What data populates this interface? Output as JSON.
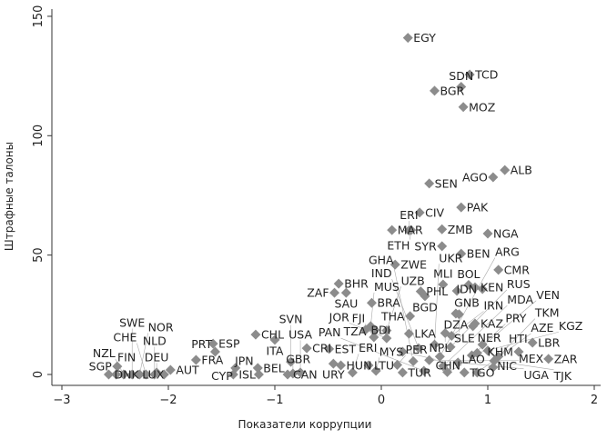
{
  "chart_data": {
    "type": "scatter",
    "title": "",
    "xlabel": "Показатели коррупции",
    "ylabel": "Штрафные талоны",
    "xlim": [
      -3,
      2.05
    ],
    "ylim": [
      0,
      150
    ],
    "xticks": [
      "−3",
      "−2",
      "−1",
      "0",
      "1",
      "2"
    ],
    "xtick_values": [
      -3,
      -2,
      -1,
      0,
      1,
      2
    ],
    "yticks": [
      "0",
      "50",
      "100",
      "150"
    ],
    "ytick_values": [
      0,
      50,
      100,
      150
    ],
    "grid": false,
    "marker": "diamond",
    "marker_color": "#8c8c8c",
    "points": [
      {
        "label": "EGY",
        "x": 0.25,
        "y": 141
      },
      {
        "label": "TCD",
        "x": 0.83,
        "y": 125.6
      },
      {
        "label": "SDN",
        "x": 0.75,
        "y": 120.5
      },
      {
        "label": "BGR",
        "x": 0.5,
        "y": 118.8
      },
      {
        "label": "MOZ",
        "x": 0.77,
        "y": 112
      },
      {
        "label": "ALB",
        "x": 1.16,
        "y": 85.6
      },
      {
        "label": "AGO",
        "x": 1.05,
        "y": 82.6
      },
      {
        "label": "SEN",
        "x": 0.45,
        "y": 80
      },
      {
        "label": "PAK",
        "x": 0.75,
        "y": 70
      },
      {
        "label": "CIV",
        "x": 0.36,
        "y": 67.8
      },
      {
        "label": "MAR",
        "x": 0.1,
        "y": 60.5
      },
      {
        "label": "ERI",
        "x": 0.26,
        "y": 60.3
      },
      {
        "label": "ETH",
        "x": 0.28,
        "y": 60.5
      },
      {
        "label": "ZMB",
        "x": 0.57,
        "y": 60.8
      },
      {
        "label": "NGA",
        "x": 1.0,
        "y": 59
      },
      {
        "label": "SYR",
        "x": 0.57,
        "y": 53.7
      },
      {
        "label": "BEN",
        "x": 0.75,
        "y": 50.6
      },
      {
        "label": "ZWE",
        "x": 0.13,
        "y": 46
      },
      {
        "label": "CMR",
        "x": 1.1,
        "y": 43.8
      },
      {
        "label": "BHR",
        "x": -0.4,
        "y": 38
      },
      {
        "label": "ZAF",
        "x": -0.44,
        "y": 34.2
      },
      {
        "label": "SAU",
        "x": -0.33,
        "y": 34.2
      },
      {
        "label": "BRA",
        "x": -0.09,
        "y": 30
      },
      {
        "label": "PHL",
        "x": 0.37,
        "y": 34.8
      },
      {
        "label": "BGD",
        "x": 0.41,
        "y": 32.8
      },
      {
        "label": "MLI",
        "x": 0.58,
        "y": 37.7
      },
      {
        "label": "GNB",
        "x": 0.71,
        "y": 35
      },
      {
        "label": "BOL",
        "x": 0.82,
        "y": 37.5
      },
      {
        "label": "KEN",
        "x": 0.88,
        "y": 36.5
      },
      {
        "label": "IDN",
        "x": 0.95,
        "y": 35.8
      },
      {
        "label": "THA",
        "x": 0.27,
        "y": 24.4
      },
      {
        "label": "DZA",
        "x": 0.7,
        "y": 25.5
      },
      {
        "label": "SLE",
        "x": 0.73,
        "y": 25.2
      },
      {
        "label": "KAZ",
        "x": 0.88,
        "y": 21.3
      },
      {
        "label": "NER",
        "x": 0.86,
        "y": 20.2
      },
      {
        "label": "LKA",
        "x": 0.26,
        "y": 17.1
      },
      {
        "label": "NPL",
        "x": 0.6,
        "y": 17.3
      },
      {
        "label": "IRN",
        "x": 0.66,
        "y": 16.2
      },
      {
        "label": "BDI",
        "x": -0.15,
        "y": 18.6
      },
      {
        "label": "TZA",
        "x": -0.06,
        "y": 18.6
      },
      {
        "label": "UZB",
        "x": 0.05,
        "y": 18.4
      },
      {
        "label": "MUS",
        "x": -0.1,
        "y": 20.2
      },
      {
        "label": "FJI",
        "x": -0.07,
        "y": 15.6
      },
      {
        "label": "JOR",
        "x": 0.05,
        "y": 15.2
      },
      {
        "label": "CHL",
        "x": -1.18,
        "y": 16.7
      },
      {
        "label": "ITA",
        "x": -1.0,
        "y": 14.5
      },
      {
        "label": "ESP",
        "x": -1.58,
        "y": 12.9
      },
      {
        "label": "PRT",
        "x": -1.56,
        "y": 9.5
      },
      {
        "label": "FRA",
        "x": -1.74,
        "y": 6.1
      },
      {
        "label": "AUT",
        "x": -1.98,
        "y": 1.9
      },
      {
        "label": "SGP",
        "x": -2.48,
        "y": 3.4
      },
      {
        "label": "DEU",
        "x": -2.11,
        "y": 0.8
      },
      {
        "label": "DNK",
        "x": -2.56,
        "y": 0
      },
      {
        "label": "FIN",
        "x": -2.49,
        "y": 0
      },
      {
        "label": "NZL",
        "x": -2.42,
        "y": 0
      },
      {
        "label": "SWE",
        "x": -2.34,
        "y": 0
      },
      {
        "label": "NOR",
        "x": -2.27,
        "y": 0
      },
      {
        "label": "CHE",
        "x": -2.21,
        "y": 0
      },
      {
        "label": "NLD",
        "x": -2.13,
        "y": 0
      },
      {
        "label": "LUX",
        "x": -2.04,
        "y": 0
      },
      {
        "label": "CYP",
        "x": -1.37,
        "y": 2.7
      },
      {
        "label": "BEL",
        "x": -1.16,
        "y": 2.7
      },
      {
        "label": "ISL",
        "x": -1.39,
        "y": 0
      },
      {
        "label": "JPN",
        "x": -1.15,
        "y": 0
      },
      {
        "label": "CAN",
        "x": -0.88,
        "y": 0
      },
      {
        "label": "GBR",
        "x": -0.83,
        "y": 0.4
      },
      {
        "label": "USA",
        "x": -0.76,
        "y": 0.8
      },
      {
        "label": "SVN",
        "x": -0.85,
        "y": 5.3
      },
      {
        "label": "CRI",
        "x": -0.7,
        "y": 11
      },
      {
        "label": "EST",
        "x": -0.49,
        "y": 10.7
      },
      {
        "label": "HUN",
        "x": -0.38,
        "y": 3.8
      },
      {
        "label": "URY",
        "x": -0.45,
        "y": 4.5
      },
      {
        "label": "LTU",
        "x": -0.12,
        "y": 3.8
      },
      {
        "label": "ERI",
        "x": -0.27,
        "y": 0.8
      },
      {
        "label": "MYS",
        "x": -0.05,
        "y": 1.5
      },
      {
        "label": "CHN",
        "x": 0.2,
        "y": 9.5
      },
      {
        "label": "IND",
        "x": 0.35,
        "y": 11
      },
      {
        "label": "UKR",
        "x": 0.5,
        "y": 12.5
      },
      {
        "label": "RUS",
        "x": 0.65,
        "y": 11.5
      },
      {
        "label": "PRY",
        "x": 0.95,
        "y": 12.5
      },
      {
        "label": "KGZ",
        "x": 0.9,
        "y": 9
      },
      {
        "label": "VEN",
        "x": 0.85,
        "y": 8
      },
      {
        "label": "GHA",
        "x": 0.3,
        "y": 5.5
      },
      {
        "label": "MEX",
        "x": 0.45,
        "y": 6
      },
      {
        "label": "ARG",
        "x": 0.55,
        "y": 7.5
      },
      {
        "label": "UGA",
        "x": 0.72,
        "y": 5
      },
      {
        "label": "PER",
        "x": 0.15,
        "y": 4
      },
      {
        "label": "TUR",
        "x": 0.2,
        "y": 0.8
      },
      {
        "label": "PAN",
        "x": 0.4,
        "y": 1.5
      },
      {
        "label": "MDA",
        "x": 0.58,
        "y": 3.5
      },
      {
        "label": "LAO",
        "x": 0.62,
        "y": 1
      },
      {
        "label": "TGO",
        "x": 0.78,
        "y": 0.8
      },
      {
        "label": "AZE",
        "x": 0.9,
        "y": 0.8
      },
      {
        "label": "TKM",
        "x": 1.1,
        "y": 7.5
      },
      {
        "label": "TJK",
        "x": 1.06,
        "y": 5.7
      },
      {
        "label": "KHM",
        "x": 1.29,
        "y": 9.5
      },
      {
        "label": "LBR",
        "x": 1.42,
        "y": 13.3
      },
      {
        "label": "ZAR",
        "x": 1.57,
        "y": 6.5
      },
      {
        "label": "NIC",
        "x": 1.0,
        "y": 10
      },
      {
        "label": "HTI",
        "x": 1.05,
        "y": 3
      }
    ]
  }
}
